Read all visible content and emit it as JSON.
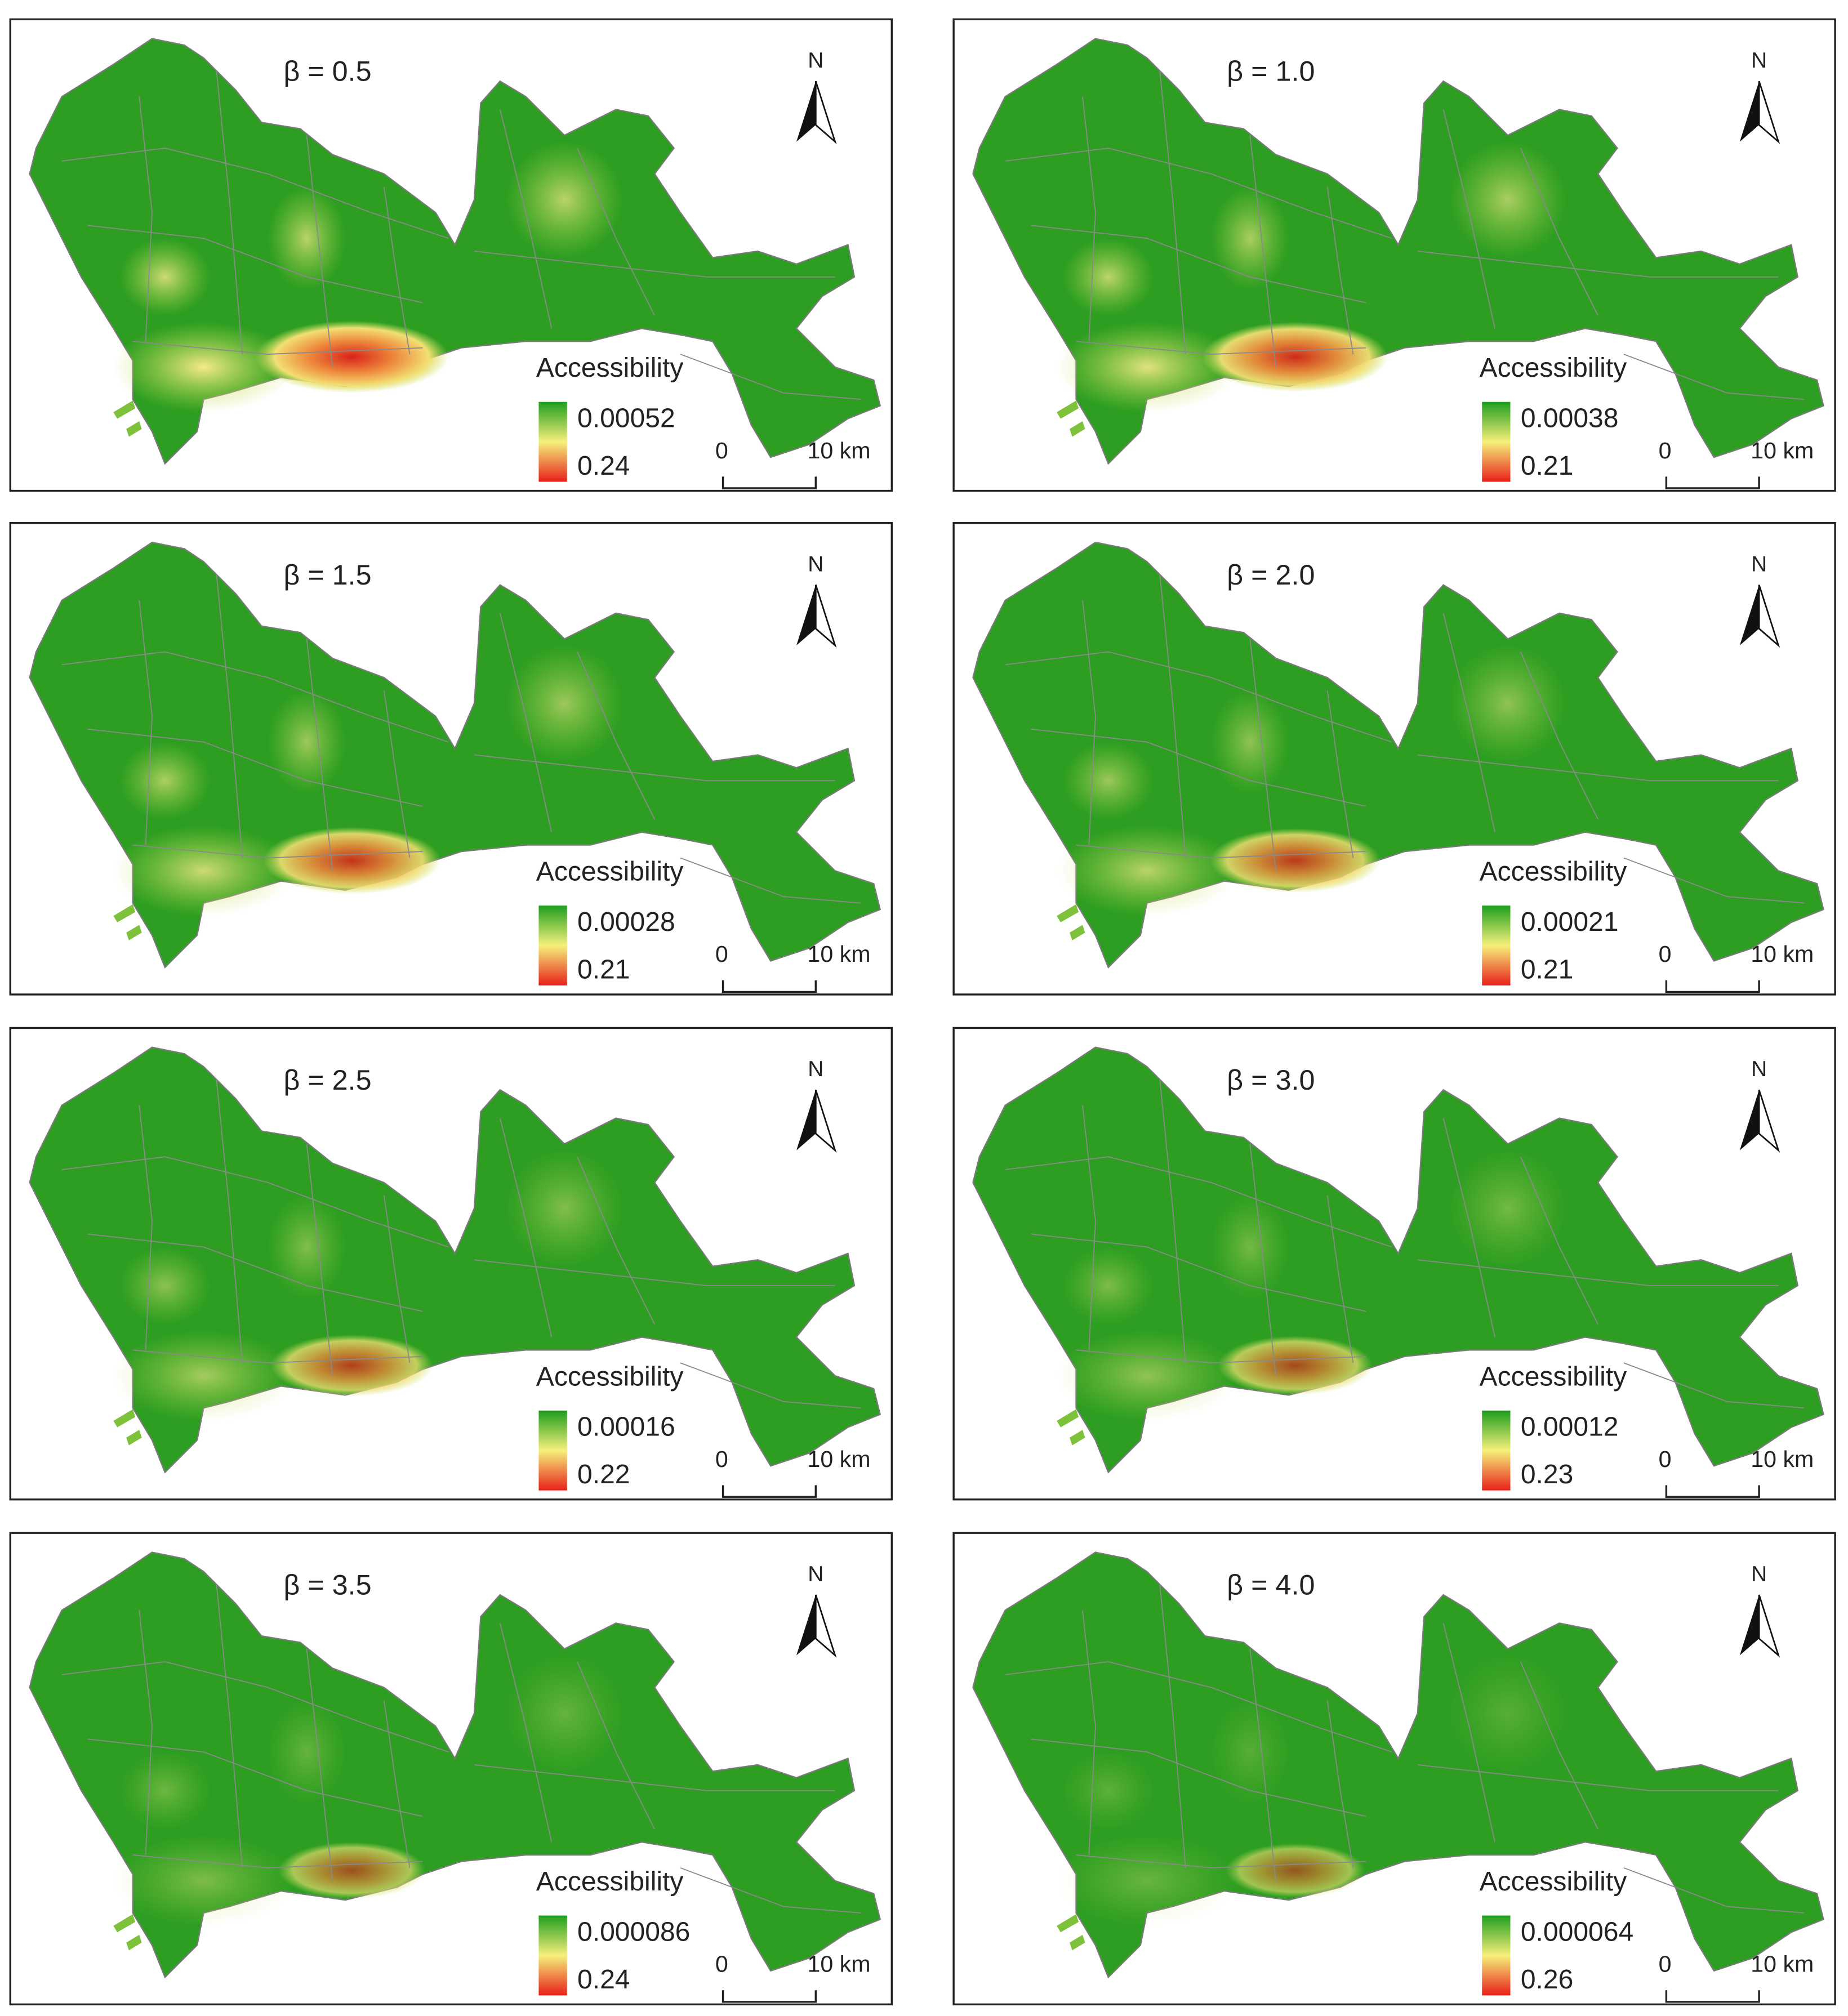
{
  "panels": [
    {
      "title": "β = 0.5",
      "legend_high": "0.00052",
      "legend_low": "0.24"
    },
    {
      "title": "β = 1.0",
      "legend_high": "0.00038",
      "legend_low": "0.21"
    },
    {
      "title": "β = 1.5",
      "legend_high": "0.00028",
      "legend_low": "0.21"
    },
    {
      "title": "β = 2.0",
      "legend_high": "0.00021",
      "legend_low": "0.21"
    },
    {
      "title": "β = 2.5",
      "legend_high": "0.00016",
      "legend_low": "0.22"
    },
    {
      "title": "β = 3.0",
      "legend_high": "0.00012",
      "legend_low": "0.23"
    },
    {
      "title": "β = 3.5",
      "legend_high": "0.000086",
      "legend_low": "0.24"
    },
    {
      "title": "β = 4.0",
      "legend_high": "0.000064",
      "legend_low": "0.26"
    }
  ],
  "north_label": "N",
  "legend_title": "Accessibility",
  "scale_start": "0",
  "scale_end": "10 km"
}
